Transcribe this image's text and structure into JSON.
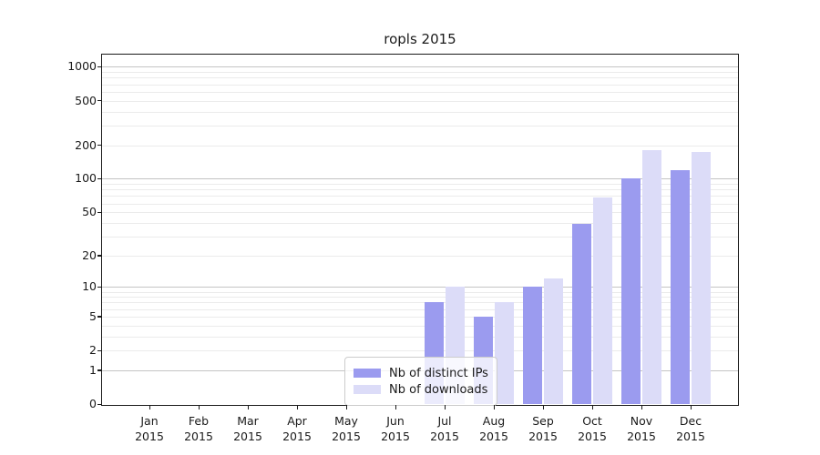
{
  "title": "ropls 2015",
  "chart_data": {
    "type": "bar",
    "title": "ropls 2015",
    "categories": [
      "Jan",
      "Feb",
      "Mar",
      "Apr",
      "May",
      "Jun",
      "Jul",
      "Aug",
      "Sep",
      "Oct",
      "Nov",
      "Dec"
    ],
    "category_year": "2015",
    "series": [
      {
        "name": "Nb of distinct IPs",
        "color": "#9b9bef",
        "values": [
          0,
          0,
          0,
          0,
          0,
          0,
          7,
          5,
          10,
          39,
          100,
          120
        ]
      },
      {
        "name": "Nb of downloads",
        "color": "#dcdcf8",
        "values": [
          0,
          0,
          0,
          0,
          0,
          0,
          10,
          7,
          12,
          68,
          180,
          175
        ]
      }
    ],
    "xlabel": "",
    "ylabel": "",
    "y_scale": "log10(1+x)",
    "ylim": [
      0,
      1150
    ],
    "y_tick_labels": [
      1000,
      500,
      200,
      100,
      50,
      20,
      10,
      5,
      2,
      1,
      0
    ],
    "grid": {
      "major_values": [
        1,
        10,
        100,
        1000
      ],
      "minor_values": [
        2,
        3,
        4,
        5,
        6,
        7,
        8,
        9,
        20,
        30,
        40,
        50,
        60,
        70,
        80,
        90,
        200,
        300,
        400,
        500,
        600,
        700,
        800,
        900
      ],
      "major_color": "#c4c4c4",
      "minor_color": "#ebebeb"
    },
    "legend_position": "lower center",
    "legend_entries": [
      "Nb of distinct IPs",
      "Nb of downloads"
    ]
  },
  "colors": {
    "axis": "#1a1a1a",
    "background": "#ffffff",
    "bar_distinct_ips": "#9b9bef",
    "bar_downloads": "#dcdcf8"
  }
}
